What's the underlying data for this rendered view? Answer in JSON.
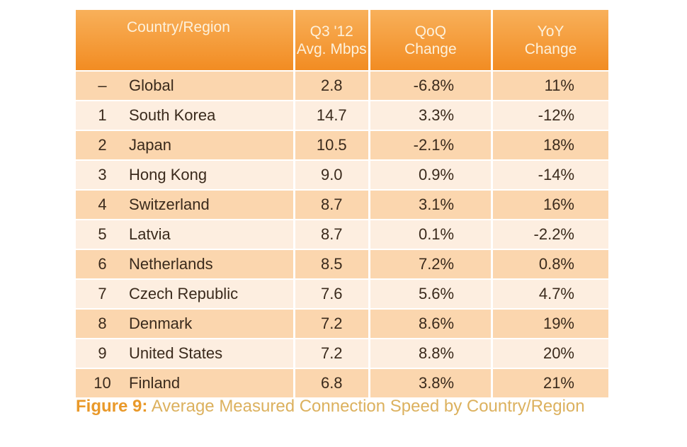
{
  "table": {
    "headers": {
      "country": "Country/Region",
      "speed_l1": "Q3 '12",
      "speed_l2": "Avg. Mbps",
      "qoq_l1": "QoQ",
      "qoq_l2": "Change",
      "yoy_l1": "YoY",
      "yoy_l2": "Change"
    },
    "rows": [
      {
        "rank": "–",
        "country": "Global",
        "speed": "2.8",
        "qoq": "-6.8%",
        "yoy": "11%"
      },
      {
        "rank": "1",
        "country": "South Korea",
        "speed": "14.7",
        "qoq": "3.3%",
        "yoy": "-12%"
      },
      {
        "rank": "2",
        "country": "Japan",
        "speed": "10.5",
        "qoq": "-2.1%",
        "yoy": "18%"
      },
      {
        "rank": "3",
        "country": "Hong Kong",
        "speed": "9.0",
        "qoq": "0.9%",
        "yoy": "-14%"
      },
      {
        "rank": "4",
        "country": "Switzerland",
        "speed": "8.7",
        "qoq": "3.1%",
        "yoy": "16%"
      },
      {
        "rank": "5",
        "country": "Latvia",
        "speed": "8.7",
        "qoq": "0.1%",
        "yoy": "-2.2%"
      },
      {
        "rank": "6",
        "country": "Netherlands",
        "speed": "8.5",
        "qoq": "7.2%",
        "yoy": "0.8%"
      },
      {
        "rank": "7",
        "country": "Czech Republic",
        "speed": "7.6",
        "qoq": "5.6%",
        "yoy": "4.7%"
      },
      {
        "rank": "8",
        "country": "Denmark",
        "speed": "7.2",
        "qoq": "8.6%",
        "yoy": "19%"
      },
      {
        "rank": "9",
        "country": "United States",
        "speed": "7.2",
        "qoq": "8.8%",
        "yoy": "20%"
      },
      {
        "rank": "10",
        "country": "Finland",
        "speed": "6.8",
        "qoq": "3.8%",
        "yoy": "21%"
      }
    ]
  },
  "caption": {
    "label": "Figure 9:",
    "text": " Average Measured Connection Speed by Country/Region"
  },
  "colors": {
    "header": "#f28c22",
    "row_dark": "#fbd6ae",
    "row_light": "#fdeee0",
    "caption": "#dcb15e"
  }
}
